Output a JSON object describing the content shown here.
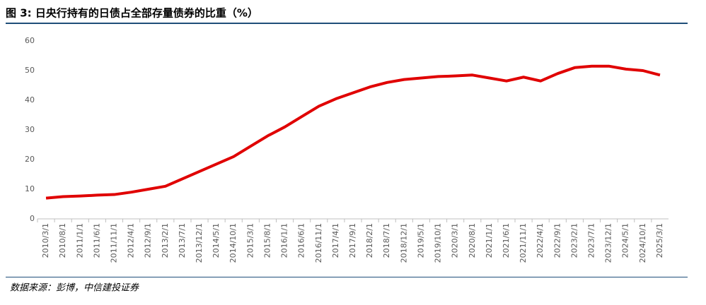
{
  "title": "图 3: 日央行持有的日债占全部存量债券的比重（%）",
  "source": "数据来源：彭博，中信建投证券",
  "chart_data": {
    "type": "line",
    "categories": [
      "2010/3/1",
      "2010/8/1",
      "2011/1/1",
      "2011/6/1",
      "2011/11/1",
      "2012/4/1",
      "2012/9/1",
      "2013/2/1",
      "2013/7/1",
      "2013/12/1",
      "2014/5/1",
      "2014/10/1",
      "2015/3/1",
      "2015/8/1",
      "2016/1/1",
      "2016/6/1",
      "2016/11/1",
      "2017/4/1",
      "2017/9/1",
      "2018/2/1",
      "2018/7/1",
      "2018/12/1",
      "2019/5/1",
      "2019/10/1",
      "2020/3/1",
      "2020/8/1",
      "2021/1/1",
      "2021/6/1",
      "2021/11/1",
      "2022/4/1",
      "2022/9/1",
      "2023/2/1",
      "2023/7/1",
      "2023/12/1",
      "2024/5/1",
      "2024/10/1",
      "2025/3/1"
    ],
    "values": [
      7,
      7.5,
      7.7,
      8,
      8.2,
      9,
      10,
      11,
      13.5,
      16,
      18.5,
      21,
      24.5,
      28,
      31,
      34.5,
      38,
      40.5,
      42.5,
      44.5,
      46,
      47,
      47.5,
      48,
      48.2,
      48.5,
      47.5,
      46.5,
      47.8,
      46.5,
      49,
      51,
      51.5,
      51.5,
      50.5,
      50,
      48.5
    ],
    "color": "#e00000",
    "ylim": [
      0,
      60
    ],
    "yticks": [
      0,
      10,
      20,
      30,
      40,
      50,
      60
    ],
    "grid": false
  }
}
